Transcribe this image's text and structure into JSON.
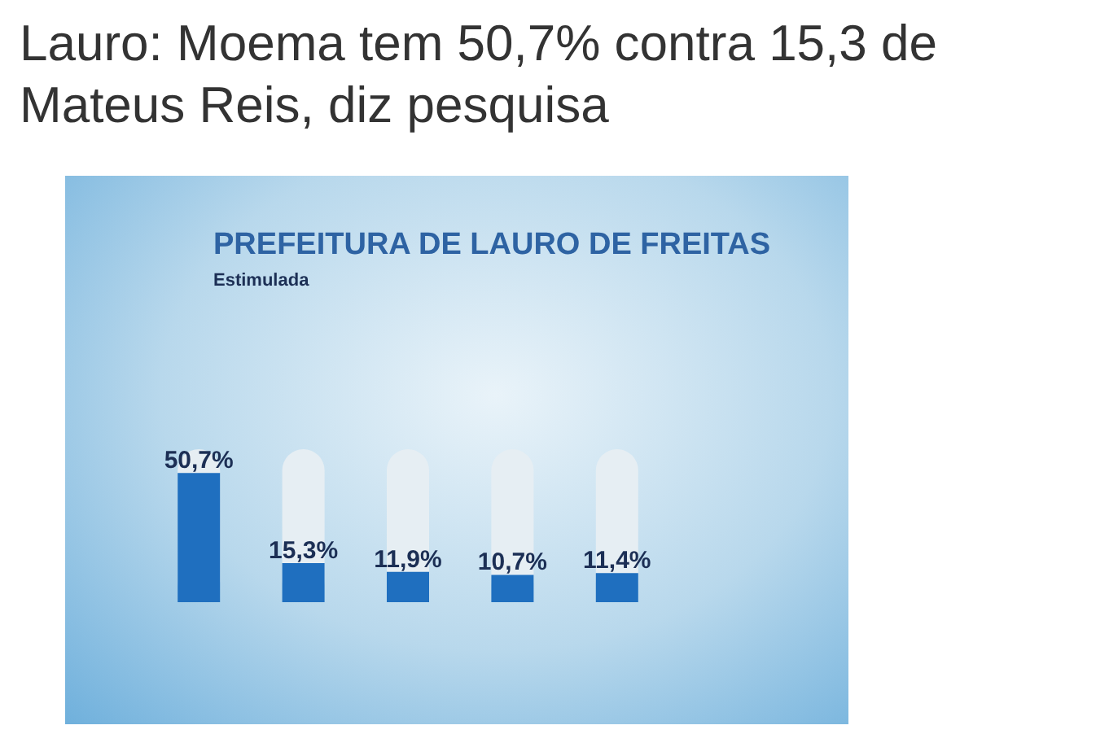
{
  "chart_data": {
    "type": "bar",
    "title": "Lauro: Moema tem 50,7% contra 15,3 de Mateus Reis, diz pesquisa",
    "subtitle": "PREFEITURA DE LAURO DE FREITAS",
    "annotations": [
      "Estimulada"
    ],
    "categories": [
      null,
      null,
      null,
      null,
      null
    ],
    "values": [
      50.7,
      15.3,
      11.9,
      10.7,
      11.4
    ],
    "value_labels": [
      "50,7%",
      "15,3%",
      "11,9%",
      "10,7%",
      "11,4%"
    ],
    "color": "#1f6fbf"
  }
}
